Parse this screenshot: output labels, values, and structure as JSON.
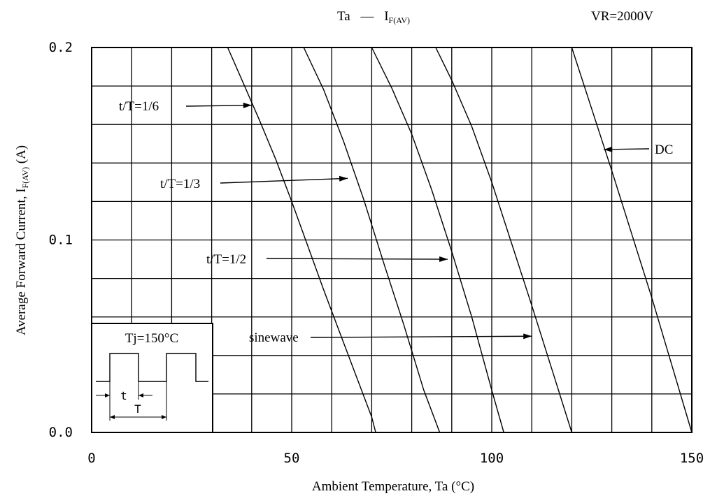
{
  "chart_data": {
    "type": "line",
    "title_main": "Ta",
    "title_dash": "—",
    "title_sym": "I",
    "title_sub": "F(AV)",
    "condition": "VR=2000V",
    "xlabel": "Ambient Temperature, Ta (°C)",
    "ylabel_main": "Average Forward Current, I",
    "ylabel_sub": "F(AV)",
    "ylabel_unit": " (A)",
    "xlim": [
      0,
      150
    ],
    "ylim": [
      0.0,
      0.2
    ],
    "x_ticks": [
      "0",
      "50",
      "100",
      "150"
    ],
    "y_ticks": [
      "0.0",
      "0.1",
      "0.2"
    ],
    "grid": true,
    "series": [
      {
        "name": "t/T=1/6",
        "x": [
          34,
          38,
          42,
          46,
          50,
          54,
          58,
          62,
          66,
          70,
          71
        ],
        "y": [
          0.2,
          0.181,
          0.162,
          0.142,
          0.12,
          0.097,
          0.074,
          0.052,
          0.03,
          0.008,
          0.0
        ]
      },
      {
        "name": "sinewave",
        "x": [
          53,
          58,
          63,
          68,
          73,
          78,
          83,
          87
        ],
        "y": [
          0.2,
          0.178,
          0.151,
          0.121,
          0.088,
          0.056,
          0.022,
          0.0
        ]
      },
      {
        "name": "t/T=1/3",
        "x": [
          70,
          75,
          80,
          85,
          90,
          95,
          100,
          103
        ],
        "y": [
          0.2,
          0.179,
          0.155,
          0.126,
          0.094,
          0.06,
          0.022,
          0.0
        ]
      },
      {
        "name": "t/T=1/2",
        "x": [
          86,
          90,
          95,
          100,
          105,
          110,
          115,
          120
        ],
        "y": [
          0.2,
          0.183,
          0.159,
          0.13,
          0.098,
          0.066,
          0.033,
          0.0
        ]
      },
      {
        "name": "DC",
        "x": [
          120,
          125,
          130,
          135,
          140,
          145,
          150
        ],
        "y": [
          0.2,
          0.168,
          0.136,
          0.103,
          0.07,
          0.035,
          0.0
        ]
      }
    ],
    "annotations": [
      {
        "text": "t/T=1/6",
        "target_x": 40,
        "target_y": 0.17
      },
      {
        "text": "t/T=1/3",
        "target_x": 64,
        "target_y": 0.132
      },
      {
        "text": "t/T=1/2",
        "target_x": 89,
        "target_y": 0.09
      },
      {
        "text": "sinewave",
        "target_x": 110,
        "target_y": 0.05
      },
      {
        "text": "DC",
        "target_x": 128,
        "target_y": 0.147
      }
    ],
    "inset": {
      "label": "Tj=150°C",
      "t_label": "t",
      "T_label": "T"
    }
  }
}
